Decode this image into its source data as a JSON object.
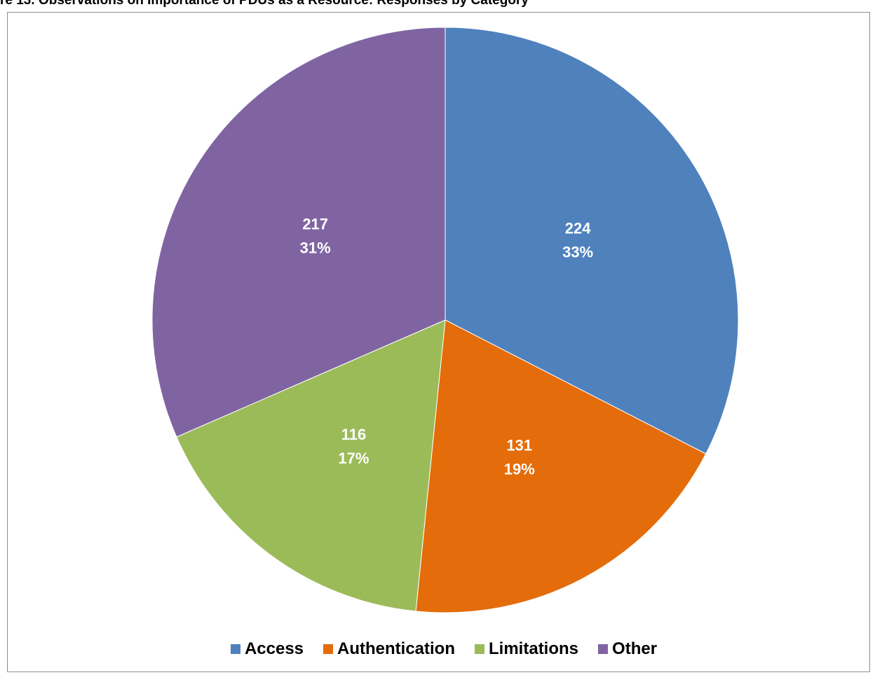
{
  "figure": {
    "title": "re 13. Observations on Importance of PDUs as a Resource: Responses by Category"
  },
  "chart_data": {
    "type": "pie",
    "slices": [
      {
        "name": "Access",
        "value": 224,
        "percent": "33%",
        "color": "#4f81bd"
      },
      {
        "name": "Authentication",
        "value": 131,
        "percent": "19%",
        "color": "#e46c0a"
      },
      {
        "name": "Limitations",
        "value": 116,
        "percent": "17%",
        "color": "#9bbb59"
      },
      {
        "name": "Other",
        "value": 217,
        "percent": "31%",
        "color": "#8064a2"
      }
    ],
    "legend_position": "bottom"
  }
}
